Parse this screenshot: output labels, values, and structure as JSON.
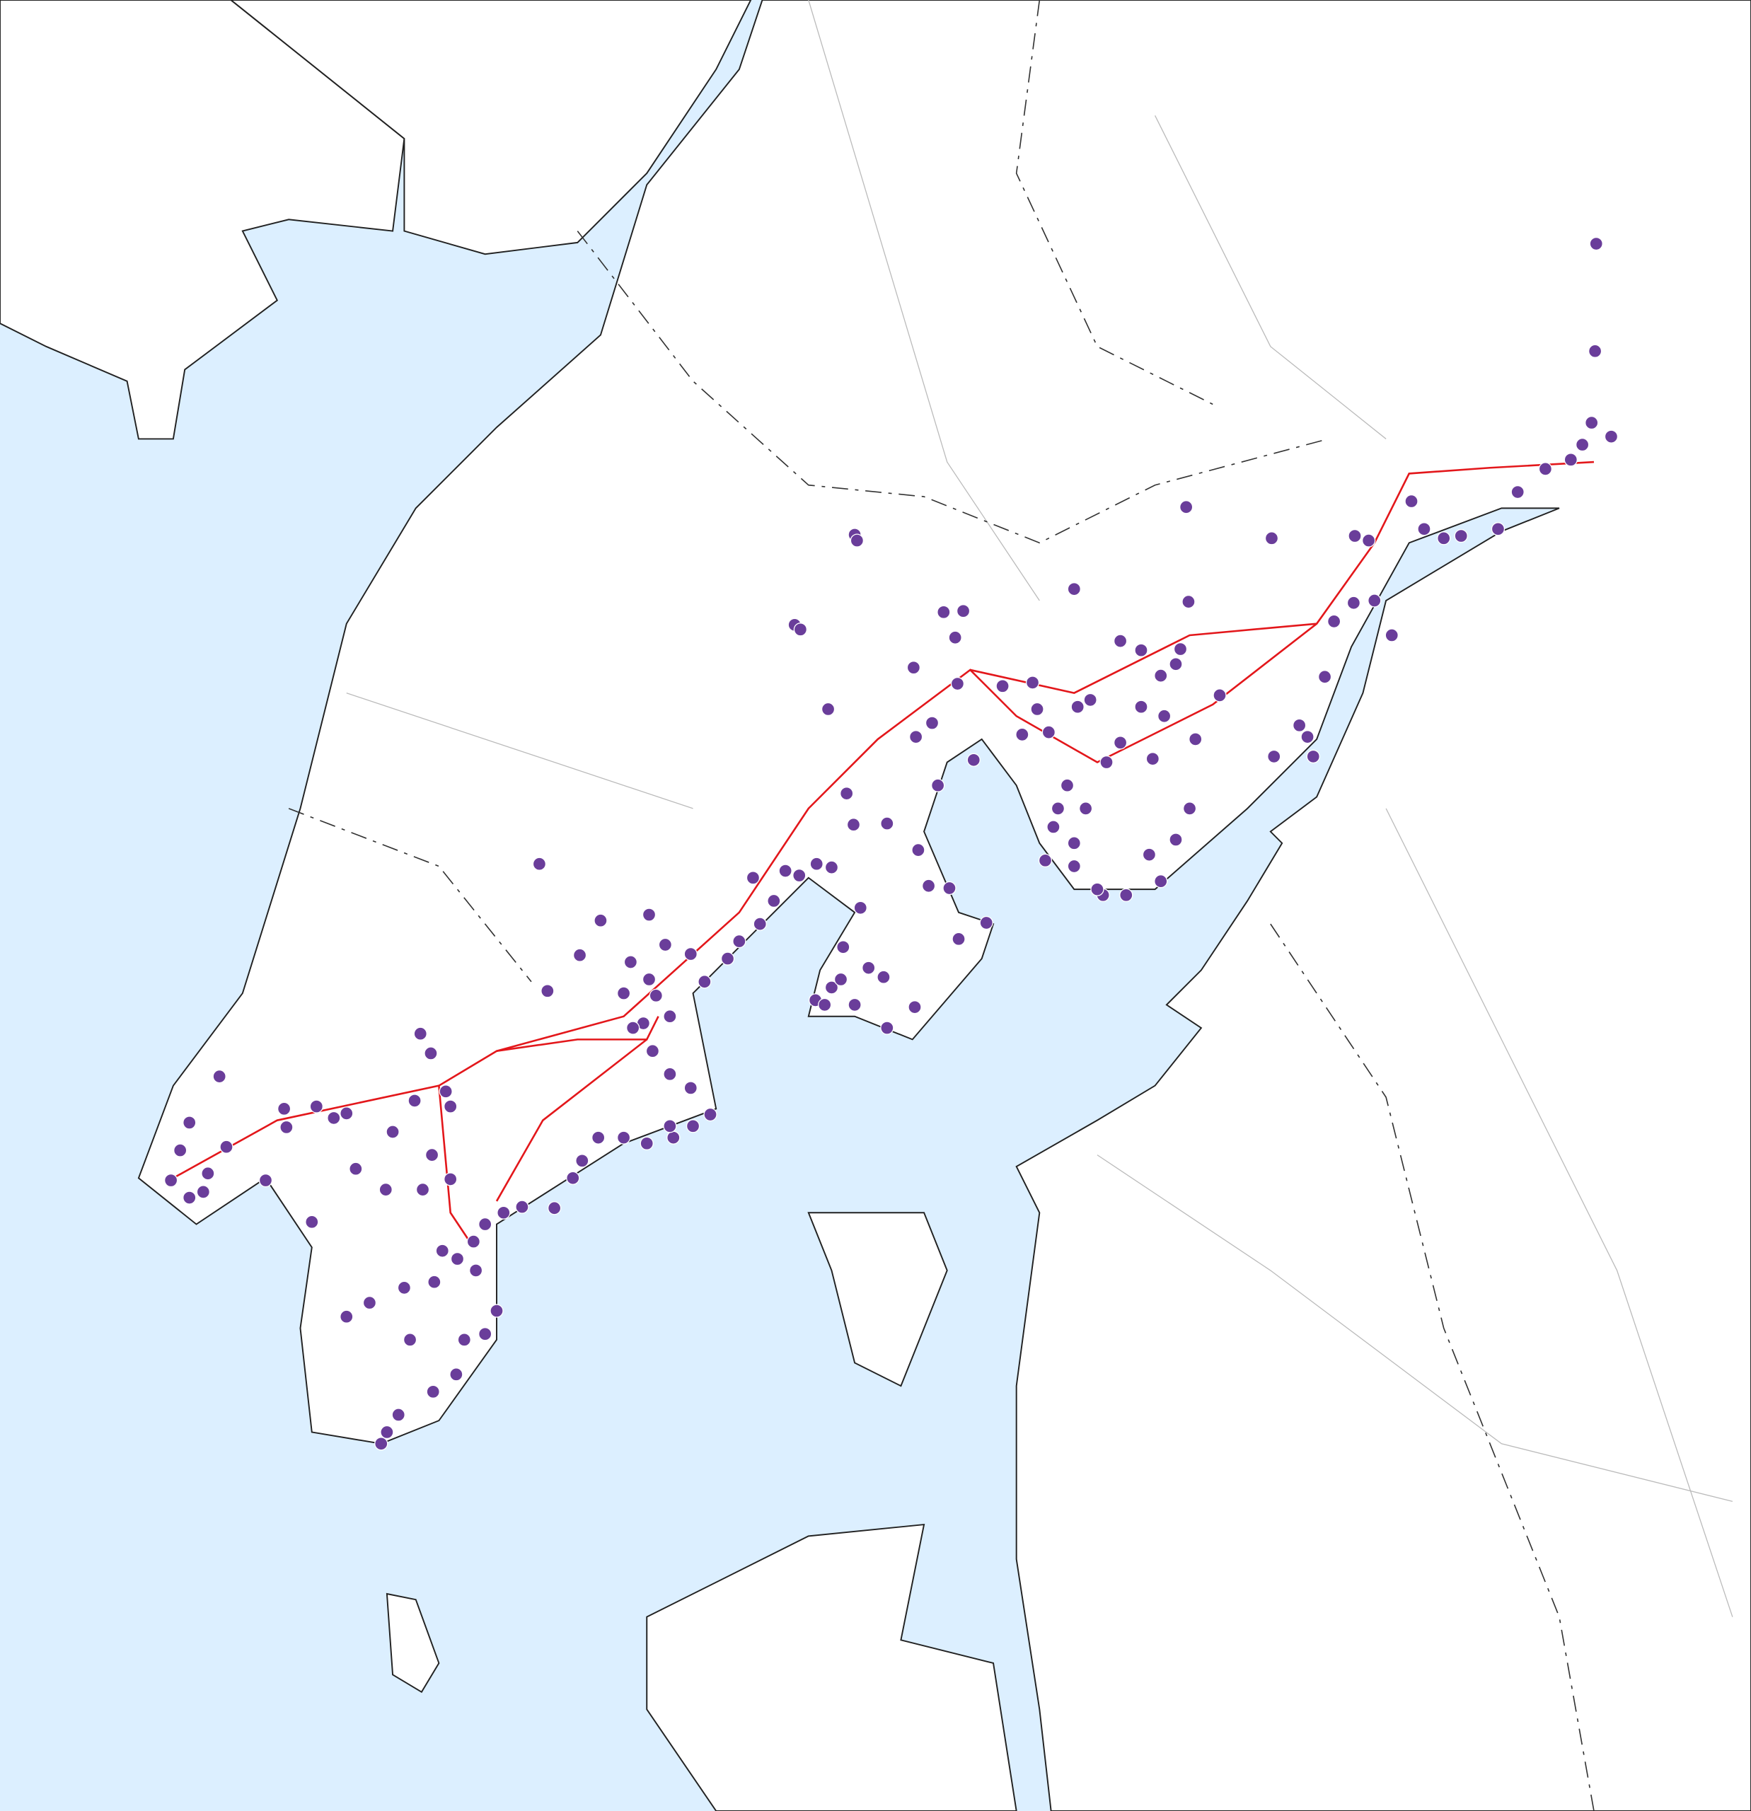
{
  "map": {
    "sea_color": "#dcefff",
    "land_color": "#ffffff",
    "route_color": "#e3171b",
    "marker_color": "#6a3d9a"
  }
}
